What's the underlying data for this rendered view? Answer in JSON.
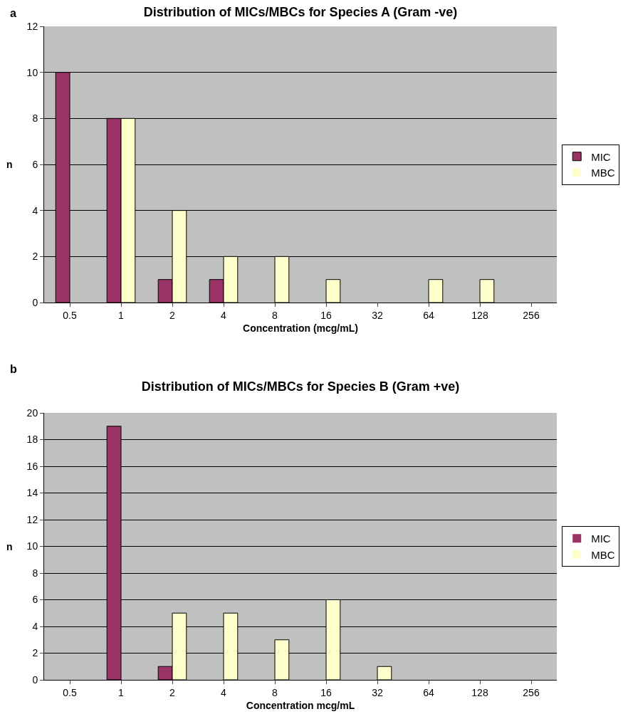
{
  "chart_data": [
    {
      "type": "bar",
      "title": "Distribution of MICs/MBCs for Species A (Gram -ve)",
      "xlabel": "Concentration (mcg/mL)",
      "ylabel": "n",
      "annotations": [
        "a"
      ],
      "categories": [
        "0.5",
        "1",
        "2",
        "4",
        "8",
        "16",
        "32",
        "64",
        "128",
        "256"
      ],
      "series": [
        {
          "name": "MIC",
          "color": "#993366",
          "values": [
            10,
            8,
            1,
            1,
            0,
            0,
            0,
            0,
            0,
            0
          ]
        },
        {
          "name": "MBC",
          "color": "#ffffcc",
          "values": [
            0,
            8,
            4,
            2,
            2,
            1,
            0,
            1,
            1,
            0
          ]
        }
      ],
      "ylim": [
        0,
        12
      ],
      "yticks": [
        0,
        2,
        4,
        6,
        8,
        10,
        12
      ],
      "grid": "y",
      "legend": "right"
    },
    {
      "type": "bar",
      "title": "Distribution of MICs/MBCs for Species B (Gram +ve)",
      "xlabel": "Concentration mcg/mL",
      "ylabel": "n",
      "annotations": [
        "b"
      ],
      "categories": [
        "0.5",
        "1",
        "2",
        "4",
        "8",
        "16",
        "32",
        "64",
        "128",
        "256"
      ],
      "series": [
        {
          "name": "MIC",
          "color": "#993366",
          "values": [
            0,
            19,
            1,
            0,
            0,
            0,
            0,
            0,
            0,
            0
          ]
        },
        {
          "name": "MBC",
          "color": "#ffffcc",
          "values": [
            0,
            0,
            5,
            5,
            3,
            6,
            1,
            0,
            0,
            0
          ]
        }
      ],
      "ylim": [
        0,
        20
      ],
      "yticks": [
        0,
        2,
        4,
        6,
        8,
        10,
        12,
        14,
        16,
        18,
        20
      ],
      "grid": "y",
      "legend": "right"
    }
  ]
}
